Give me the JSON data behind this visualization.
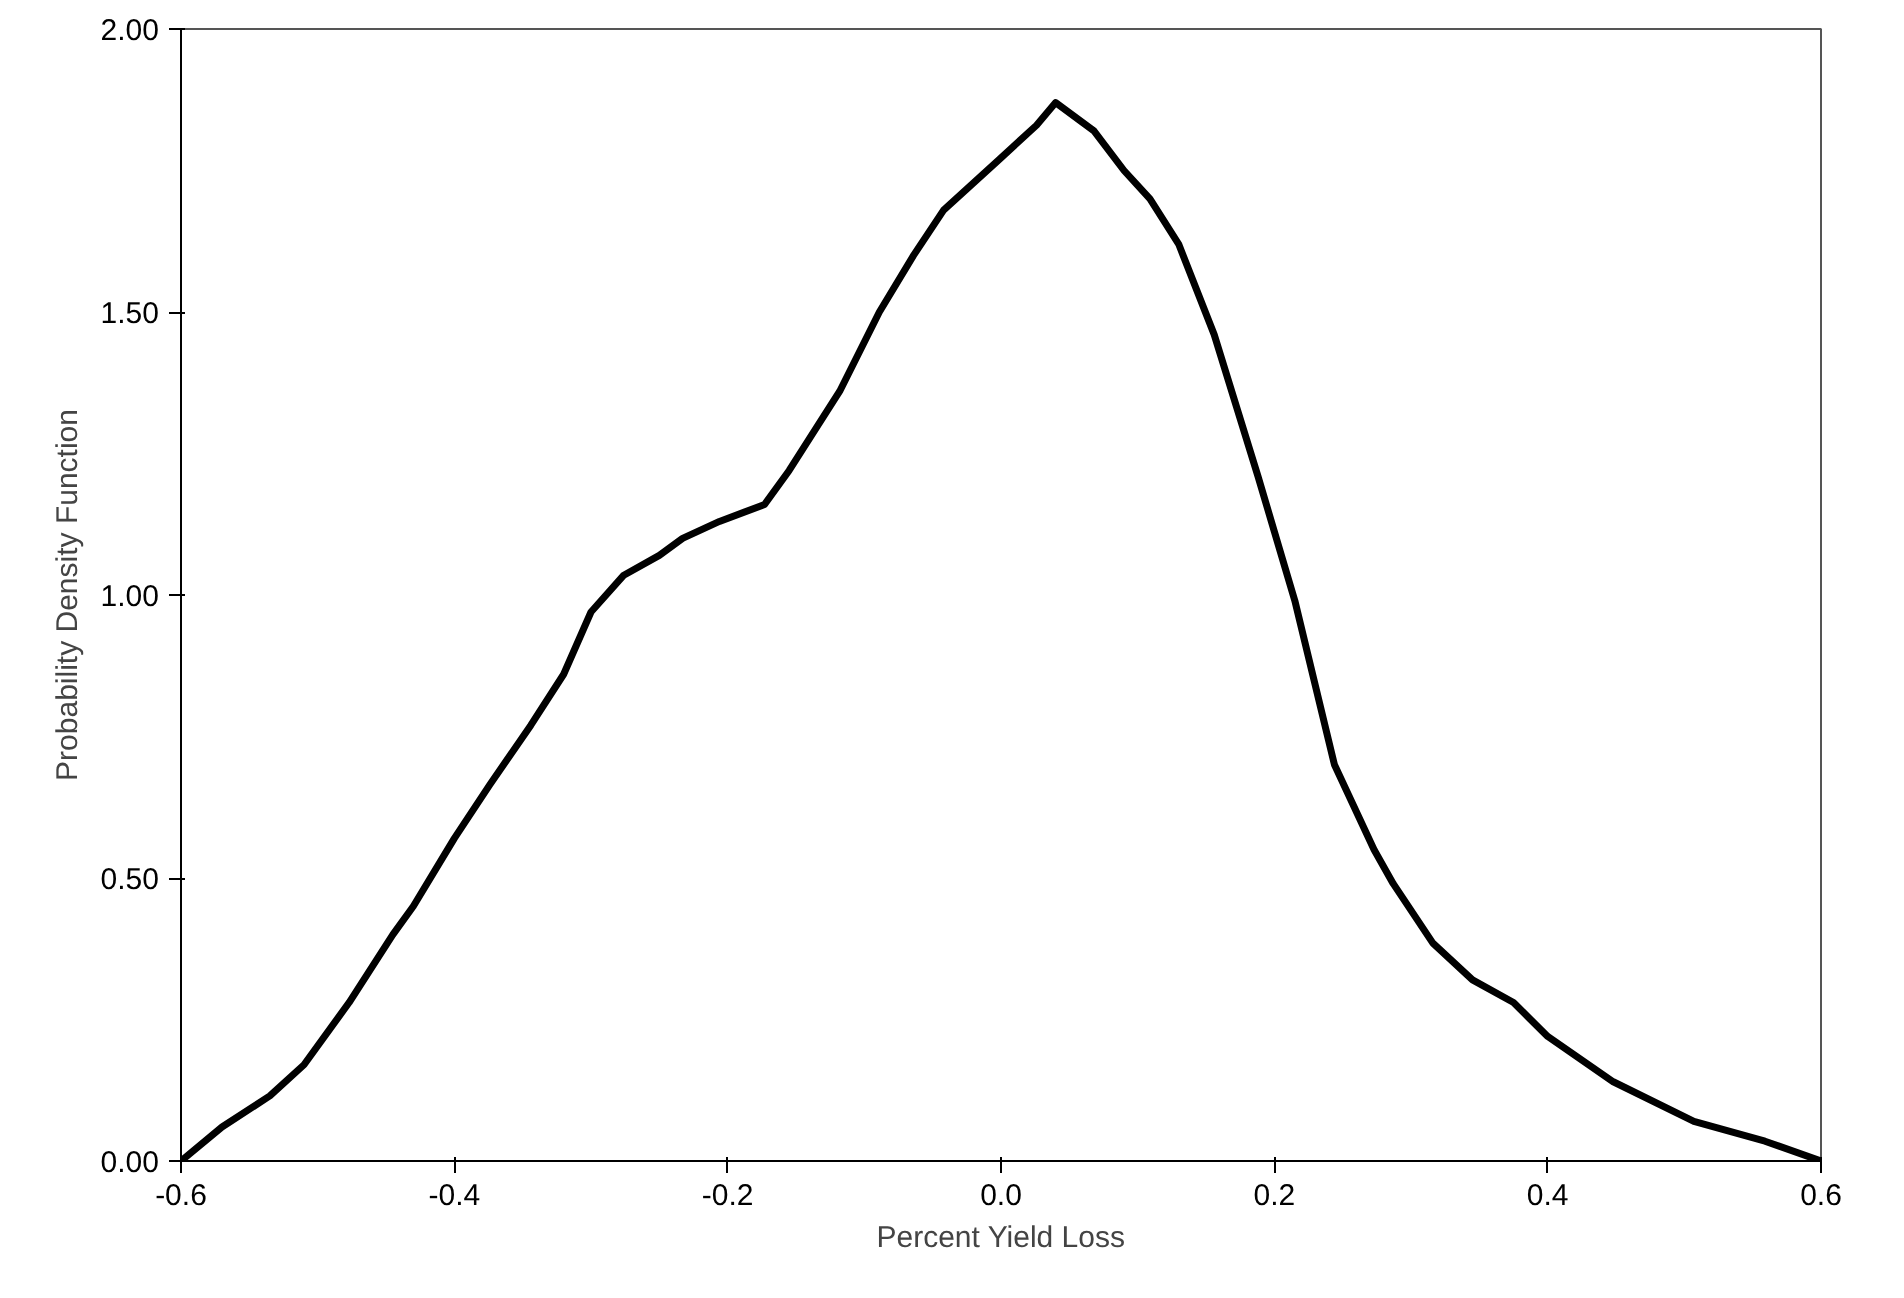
{
  "chart_data": {
    "type": "line",
    "xlabel": "Percent Yield Loss",
    "ylabel": "Probability Density Function",
    "x": [
      -0.6,
      -0.57,
      -0.535,
      -0.51,
      -0.477,
      -0.445,
      -0.43,
      -0.4,
      -0.374,
      -0.344,
      -0.32,
      -0.3,
      -0.276,
      -0.25,
      -0.233,
      -0.206,
      -0.173,
      -0.155,
      -0.118,
      -0.089,
      -0.064,
      -0.042,
      -0.001,
      0.026,
      0.04,
      0.068,
      0.09,
      0.109,
      0.13,
      0.156,
      0.188,
      0.215,
      0.244,
      0.273,
      0.287,
      0.316,
      0.345,
      0.375,
      0.4,
      0.448,
      0.507,
      0.559,
      0.6
    ],
    "series": [
      {
        "color": "#000000",
        "values": [
          0,
          0.06,
          0.115,
          0.17,
          0.28,
          0.4,
          0.45,
          0.57,
          0.665,
          0.77,
          0.86,
          0.97,
          1.035,
          1.07,
          1.1,
          1.13,
          1.16,
          1.22,
          1.36,
          1.5,
          1.6,
          1.68,
          1.77,
          1.83,
          1.87,
          1.82,
          1.75,
          1.7,
          1.62,
          1.46,
          1.21,
          0.99,
          0.7,
          0.55,
          0.49,
          0.385,
          0.32,
          0.28,
          0.22,
          0.14,
          0.07,
          0.035,
          0
        ]
      }
    ],
    "xlim": [
      -0.6,
      0.6
    ],
    "ylim": [
      0,
      2
    ],
    "xticks": [
      {
        "value": -0.6,
        "label": "-0.6"
      },
      {
        "value": -0.4,
        "label": "-0.4"
      },
      {
        "value": -0.2,
        "label": "-0.2"
      },
      {
        "value": 0,
        "label": "0.0"
      },
      {
        "value": 0.2,
        "label": "0.2"
      },
      {
        "value": 0.4,
        "label": "0.4"
      },
      {
        "value": 0.6,
        "label": "0.6"
      }
    ],
    "yticks": [
      {
        "value": 0,
        "label": "0.00"
      },
      {
        "value": 0.5,
        "label": "0.50"
      },
      {
        "value": 1,
        "label": "1.00"
      },
      {
        "value": 1.5,
        "label": "1.50"
      },
      {
        "value": 2,
        "label": "2.00"
      }
    ],
    "grid": false,
    "marker": "none",
    "line_style": "solid"
  }
}
